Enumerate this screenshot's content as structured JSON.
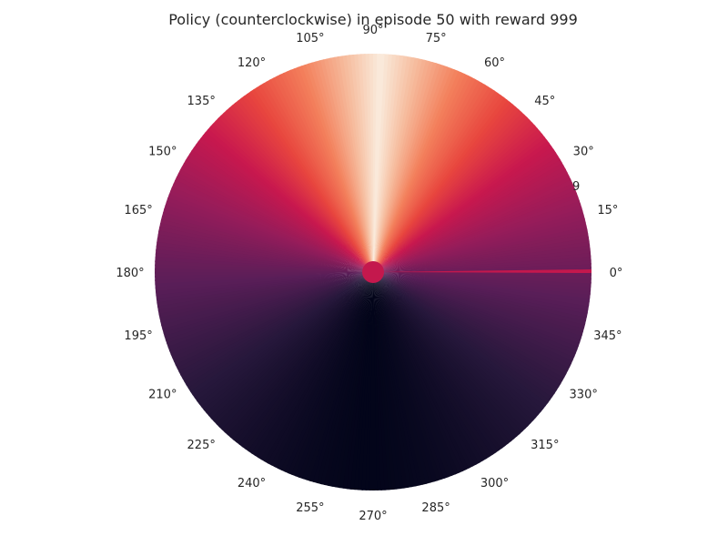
{
  "chart_data": {
    "type": "heatmap",
    "projection": "polar",
    "title": "Policy (counterclockwise) in episode 50 with reward 999",
    "colormap": "rocket",
    "angle_ticks": [
      "0°",
      "15°",
      "30°",
      "45°",
      "60°",
      "75°",
      "90°",
      "105°",
      "120°",
      "135°",
      "150°",
      "165°",
      "180°",
      "195°",
      "210°",
      "225°",
      "240°",
      "255°",
      "270°",
      "285°",
      "300°",
      "315°",
      "330°",
      "345°"
    ],
    "radial_tick_labels": [
      "9"
    ],
    "hot_direction_deg": 88,
    "grid": false,
    "legend": "none"
  }
}
